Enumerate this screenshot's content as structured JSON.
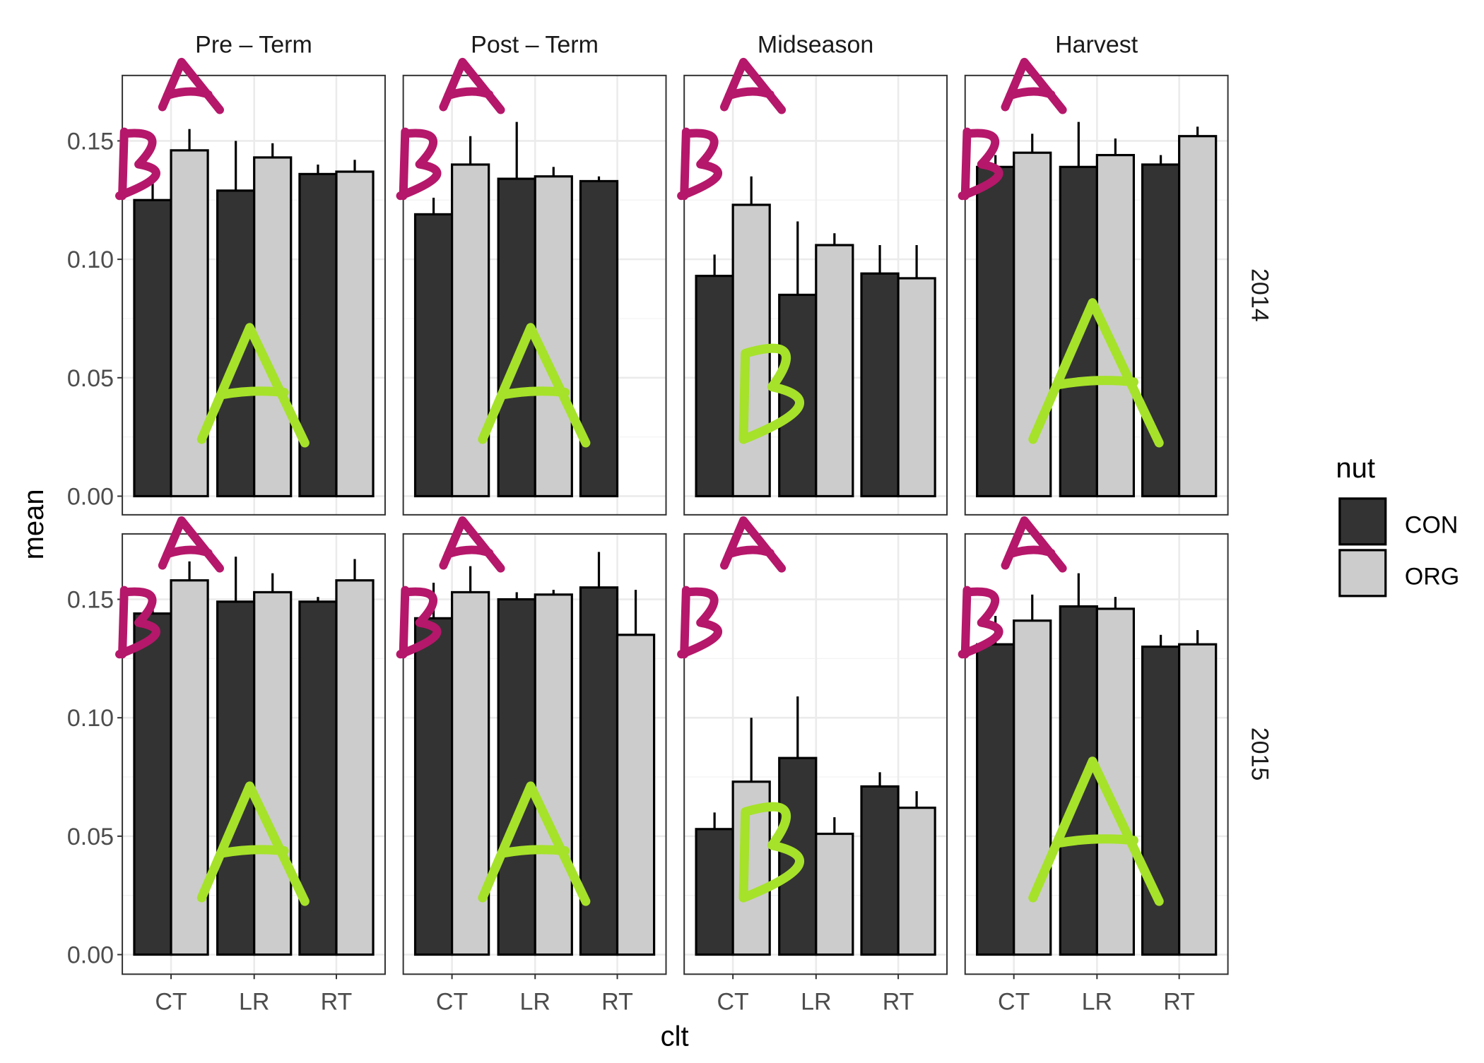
{
  "chart_data": {
    "type": "bar",
    "facet_rows": [
      "2014",
      "2015"
    ],
    "facet_cols": [
      "Pre – Term",
      "Post – Term",
      "Midseason",
      "Harvest"
    ],
    "categories": [
      "CT",
      "LR",
      "RT"
    ],
    "xlabel": "clt",
    "ylabel": "mean",
    "ylim": [
      0,
      0.175
    ],
    "yticks": [
      "0.00",
      "0.05",
      "0.10",
      "0.15"
    ],
    "ytick_values": [
      0,
      0.05,
      0.1,
      0.15
    ],
    "legend": {
      "title": "nut",
      "position": "right",
      "entries": [
        {
          "name": "CON",
          "color": "#333333"
        },
        {
          "name": "ORG",
          "color": "#cccccc"
        }
      ]
    },
    "grid": true,
    "panels": [
      {
        "row": "2014",
        "col": "Pre – Term",
        "series": [
          {
            "name": "CON",
            "values": [
              0.125,
              0.129,
              0.136
            ],
            "errors": [
              0.132,
              0.15,
              0.14
            ]
          },
          {
            "name": "ORG",
            "values": [
              0.146,
              0.143,
              0.137
            ],
            "errors": [
              0.155,
              0.149,
              0.142
            ]
          }
        ]
      },
      {
        "row": "2014",
        "col": "Post – Term",
        "series": [
          {
            "name": "CON",
            "values": [
              0.119,
              0.134,
              0.133
            ],
            "errors": [
              0.126,
              0.158,
              0.135
            ]
          },
          {
            "name": "ORG",
            "values": [
              0.14,
              0.135,
              null
            ],
            "errors": [
              0.152,
              0.139,
              null
            ]
          }
        ]
      },
      {
        "row": "2014",
        "col": "Midseason",
        "series": [
          {
            "name": "CON",
            "values": [
              0.093,
              0.085,
              0.094
            ],
            "errors": [
              0.102,
              0.116,
              0.106
            ]
          },
          {
            "name": "ORG",
            "values": [
              0.123,
              0.106,
              0.092
            ],
            "errors": [
              0.135,
              0.111,
              0.106
            ]
          }
        ]
      },
      {
        "row": "2014",
        "col": "Harvest",
        "series": [
          {
            "name": "CON",
            "values": [
              0.139,
              0.139,
              0.14
            ],
            "errors": [
              0.144,
              0.158,
              0.144
            ]
          },
          {
            "name": "ORG",
            "values": [
              0.145,
              0.144,
              0.152
            ],
            "errors": [
              0.153,
              0.151,
              0.156
            ]
          }
        ]
      },
      {
        "row": "2015",
        "col": "Pre – Term",
        "series": [
          {
            "name": "CON",
            "values": [
              0.144,
              0.149,
              0.149
            ],
            "errors": [
              0.15,
              0.168,
              0.151
            ]
          },
          {
            "name": "ORG",
            "values": [
              0.158,
              0.153,
              0.158
            ],
            "errors": [
              0.166,
              0.161,
              0.167
            ]
          }
        ]
      },
      {
        "row": "2015",
        "col": "Post – Term",
        "series": [
          {
            "name": "CON",
            "values": [
              0.142,
              0.15,
              0.155
            ],
            "errors": [
              0.157,
              0.153,
              0.17
            ]
          },
          {
            "name": "ORG",
            "values": [
              0.153,
              0.152,
              0.135
            ],
            "errors": [
              0.164,
              0.154,
              0.154
            ]
          }
        ]
      },
      {
        "row": "2015",
        "col": "Midseason",
        "series": [
          {
            "name": "CON",
            "values": [
              0.053,
              0.083,
              0.071
            ],
            "errors": [
              0.06,
              0.109,
              0.077
            ]
          },
          {
            "name": "ORG",
            "values": [
              0.073,
              0.051,
              0.062
            ],
            "errors": [
              0.1,
              0.058,
              0.069
            ]
          }
        ]
      },
      {
        "row": "2015",
        "col": "Harvest",
        "series": [
          {
            "name": "CON",
            "values": [
              0.131,
              0.147,
              0.13
            ],
            "errors": [
              0.143,
              0.161,
              0.135
            ]
          },
          {
            "name": "ORG",
            "values": [
              0.141,
              0.146,
              0.131
            ],
            "errors": [
              0.152,
              0.151,
              0.137
            ]
          }
        ]
      }
    ],
    "annotations": {
      "style": "handwritten",
      "magenta_color": "#b5176a",
      "lime_color": "#a6e22a",
      "letters": [
        {
          "row": "2014",
          "col": "Pre – Term",
          "magenta": "B A",
          "lime": "A"
        },
        {
          "row": "2014",
          "col": "Post – Term",
          "magenta": "B A",
          "lime": "A"
        },
        {
          "row": "2014",
          "col": "Midseason",
          "magenta": "B A",
          "lime": "B"
        },
        {
          "row": "2014",
          "col": "Harvest",
          "magenta": "B A",
          "lime": "A"
        },
        {
          "row": "2015",
          "col": "Pre – Term",
          "magenta": "B A",
          "lime": "A"
        },
        {
          "row": "2015",
          "col": "Post – Term",
          "magenta": "B A",
          "lime": "A"
        },
        {
          "row": "2015",
          "col": "Midseason",
          "magenta": "B A",
          "lime": "B"
        },
        {
          "row": "2015",
          "col": "Harvest",
          "magenta": "B A",
          "lime": "A"
        }
      ]
    }
  }
}
